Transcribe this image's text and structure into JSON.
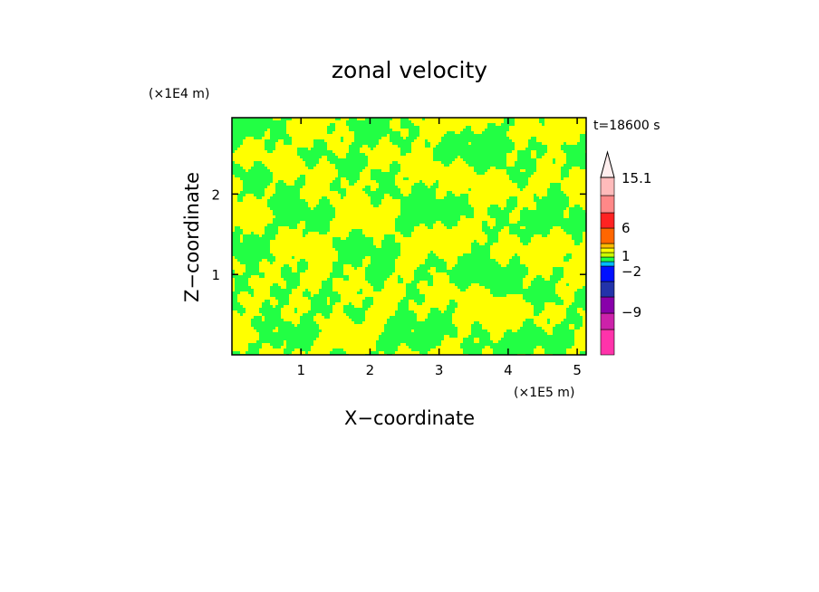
{
  "chart_data": {
    "type": "heatmap",
    "title": "zonal velocity",
    "xlabel": "X−coordinate",
    "ylabel": "Z−coordinate",
    "x_unit": "(×1E5 m)",
    "y_unit": "(×1E4 m)",
    "time_label": "t=18600 s",
    "x_ticks": [
      "1",
      "2",
      "3",
      "4",
      "5"
    ],
    "y_ticks": [
      "1",
      "2"
    ],
    "xlim": [
      0,
      5.13
    ],
    "ylim": [
      0,
      2.95
    ],
    "field_colors": {
      "primary": "#ffff00",
      "secondary": "#22ff44"
    },
    "colorbar": {
      "labels": [
        {
          "text": "15.1",
          "value": 15.1
        },
        {
          "text": "6",
          "value": 6
        },
        {
          "text": "1",
          "value": 1
        },
        {
          "text": "−2",
          "value": -2
        },
        {
          "text": "−9",
          "value": -9
        }
      ],
      "colors": [
        "#ff33aa",
        "#cc22aa",
        "#8800aa",
        "#2233aa",
        "#0011ff",
        "#00bbff",
        "#22ff44",
        "#ccff00",
        "#ffff00",
        "#ffbb00",
        "#ff6600",
        "#ff2222",
        "#ff8888",
        "#ffbbbb"
      ],
      "over_color": "#ffeeee"
    }
  }
}
